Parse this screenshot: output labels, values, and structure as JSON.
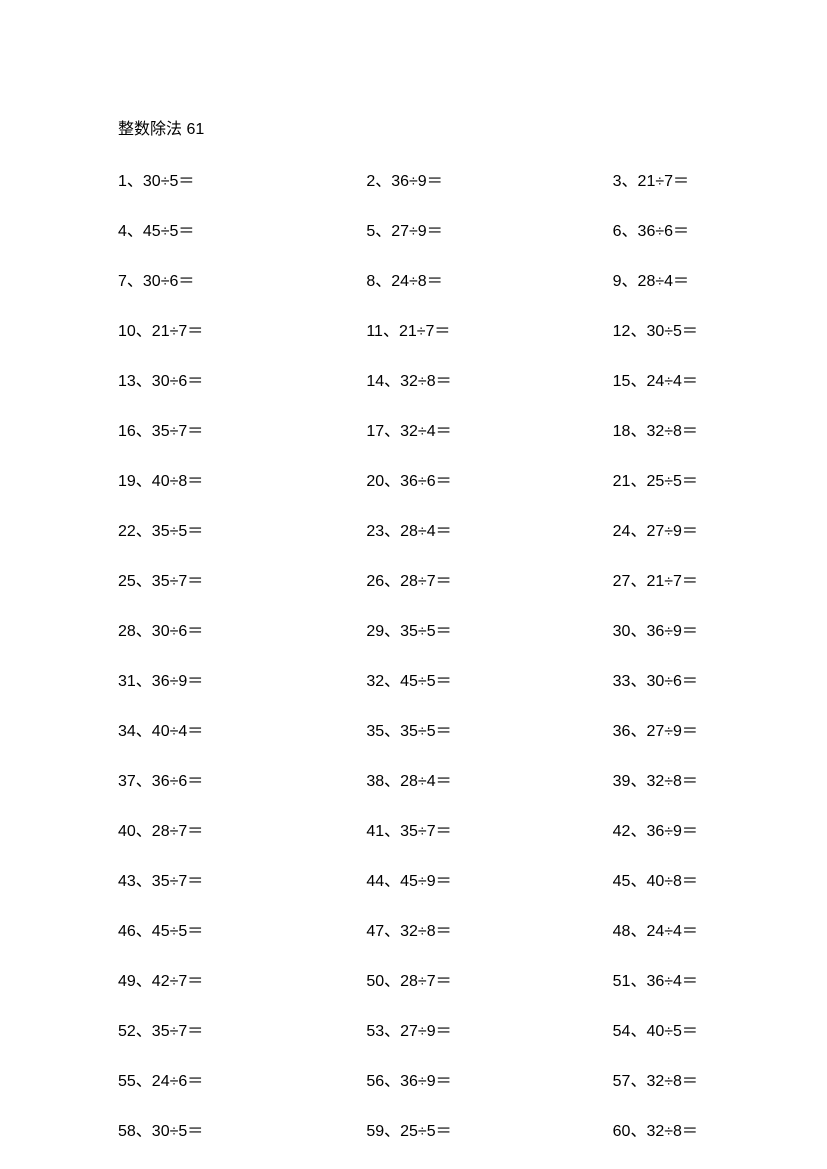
{
  "title": "整数除法 61",
  "text_color": "#000000",
  "background_color": "#ffffff",
  "font_size": 16,
  "columns": 3,
  "rows": 20,
  "separator": "、",
  "division_sign": "÷",
  "equals_sign": "＝",
  "problems": [
    {
      "num": 1,
      "dividend": 30,
      "divisor": 5
    },
    {
      "num": 2,
      "dividend": 36,
      "divisor": 9
    },
    {
      "num": 3,
      "dividend": 21,
      "divisor": 7
    },
    {
      "num": 4,
      "dividend": 45,
      "divisor": 5
    },
    {
      "num": 5,
      "dividend": 27,
      "divisor": 9
    },
    {
      "num": 6,
      "dividend": 36,
      "divisor": 6
    },
    {
      "num": 7,
      "dividend": 30,
      "divisor": 6
    },
    {
      "num": 8,
      "dividend": 24,
      "divisor": 8
    },
    {
      "num": 9,
      "dividend": 28,
      "divisor": 4
    },
    {
      "num": 10,
      "dividend": 21,
      "divisor": 7
    },
    {
      "num": 11,
      "dividend": 21,
      "divisor": 7
    },
    {
      "num": 12,
      "dividend": 30,
      "divisor": 5
    },
    {
      "num": 13,
      "dividend": 30,
      "divisor": 6
    },
    {
      "num": 14,
      "dividend": 32,
      "divisor": 8
    },
    {
      "num": 15,
      "dividend": 24,
      "divisor": 4
    },
    {
      "num": 16,
      "dividend": 35,
      "divisor": 7
    },
    {
      "num": 17,
      "dividend": 32,
      "divisor": 4
    },
    {
      "num": 18,
      "dividend": 32,
      "divisor": 8
    },
    {
      "num": 19,
      "dividend": 40,
      "divisor": 8
    },
    {
      "num": 20,
      "dividend": 36,
      "divisor": 6
    },
    {
      "num": 21,
      "dividend": 25,
      "divisor": 5
    },
    {
      "num": 22,
      "dividend": 35,
      "divisor": 5
    },
    {
      "num": 23,
      "dividend": 28,
      "divisor": 4
    },
    {
      "num": 24,
      "dividend": 27,
      "divisor": 9
    },
    {
      "num": 25,
      "dividend": 35,
      "divisor": 7
    },
    {
      "num": 26,
      "dividend": 28,
      "divisor": 7
    },
    {
      "num": 27,
      "dividend": 21,
      "divisor": 7
    },
    {
      "num": 28,
      "dividend": 30,
      "divisor": 6
    },
    {
      "num": 29,
      "dividend": 35,
      "divisor": 5
    },
    {
      "num": 30,
      "dividend": 36,
      "divisor": 9
    },
    {
      "num": 31,
      "dividend": 36,
      "divisor": 9
    },
    {
      "num": 32,
      "dividend": 45,
      "divisor": 5
    },
    {
      "num": 33,
      "dividend": 30,
      "divisor": 6
    },
    {
      "num": 34,
      "dividend": 40,
      "divisor": 4
    },
    {
      "num": 35,
      "dividend": 35,
      "divisor": 5
    },
    {
      "num": 36,
      "dividend": 27,
      "divisor": 9
    },
    {
      "num": 37,
      "dividend": 36,
      "divisor": 6
    },
    {
      "num": 38,
      "dividend": 28,
      "divisor": 4
    },
    {
      "num": 39,
      "dividend": 32,
      "divisor": 8
    },
    {
      "num": 40,
      "dividend": 28,
      "divisor": 7
    },
    {
      "num": 41,
      "dividend": 35,
      "divisor": 7
    },
    {
      "num": 42,
      "dividend": 36,
      "divisor": 9
    },
    {
      "num": 43,
      "dividend": 35,
      "divisor": 7
    },
    {
      "num": 44,
      "dividend": 45,
      "divisor": 9
    },
    {
      "num": 45,
      "dividend": 40,
      "divisor": 8
    },
    {
      "num": 46,
      "dividend": 45,
      "divisor": 5
    },
    {
      "num": 47,
      "dividend": 32,
      "divisor": 8
    },
    {
      "num": 48,
      "dividend": 24,
      "divisor": 4
    },
    {
      "num": 49,
      "dividend": 42,
      "divisor": 7
    },
    {
      "num": 50,
      "dividend": 28,
      "divisor": 7
    },
    {
      "num": 51,
      "dividend": 36,
      "divisor": 4
    },
    {
      "num": 52,
      "dividend": 35,
      "divisor": 7
    },
    {
      "num": 53,
      "dividend": 27,
      "divisor": 9
    },
    {
      "num": 54,
      "dividend": 40,
      "divisor": 5
    },
    {
      "num": 55,
      "dividend": 24,
      "divisor": 6
    },
    {
      "num": 56,
      "dividend": 36,
      "divisor": 9
    },
    {
      "num": 57,
      "dividend": 32,
      "divisor": 8
    },
    {
      "num": 58,
      "dividend": 30,
      "divisor": 5
    },
    {
      "num": 59,
      "dividend": 25,
      "divisor": 5
    },
    {
      "num": 60,
      "dividend": 32,
      "divisor": 8
    }
  ]
}
